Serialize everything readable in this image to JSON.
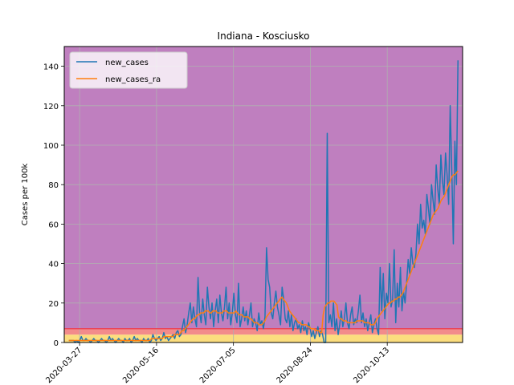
{
  "chart_data": {
    "type": "line",
    "title": "Indiana - Kosciusko",
    "xlabel": "",
    "ylabel": "Cases per 100k",
    "x_start": "2020-03-20",
    "x_end": "2020-11-28",
    "xlim": [
      "2020-03-17",
      "2020-12-01"
    ],
    "ylim": [
      0,
      150
    ],
    "x_ticks": [
      "2020-03-27",
      "2020-05-16",
      "2020-07-05",
      "2020-08-24",
      "2020-10-13"
    ],
    "y_ticks": [
      0,
      20,
      40,
      60,
      80,
      100,
      120,
      140
    ],
    "grid": true,
    "legend_position": "top-left",
    "bands": [
      {
        "from": 0,
        "to": 4,
        "color": "#fbdd7e"
      },
      {
        "from": 4,
        "to": 7,
        "color": "#f28b8b"
      },
      {
        "from": 7,
        "to": 150,
        "color": "#bf7fbf"
      }
    ],
    "threshold_line": {
      "value": 7,
      "color": "#e8445a"
    },
    "series": [
      {
        "name": "new_cases",
        "color": "#1f77b4",
        "values": [
          1,
          1,
          1,
          1,
          0,
          1,
          0,
          1,
          3,
          1,
          1,
          2,
          1,
          1,
          0,
          1,
          2,
          1,
          1,
          0,
          1,
          2,
          1,
          1,
          0,
          1,
          3,
          1,
          2,
          1,
          0,
          1,
          2,
          1,
          1,
          0,
          2,
          1,
          1,
          2,
          0,
          1,
          3,
          1,
          2,
          1,
          1,
          0,
          2,
          1,
          1,
          2,
          0,
          1,
          4,
          2,
          1,
          2,
          3,
          1,
          2,
          5,
          2,
          3,
          1,
          2,
          3,
          4,
          2,
          5,
          6,
          3,
          4,
          8,
          12,
          5,
          9,
          15,
          20,
          10,
          18,
          12,
          8,
          33,
          15,
          10,
          22,
          14,
          9,
          28,
          18,
          12,
          20,
          8,
          16,
          22,
          10,
          24,
          15,
          11,
          18,
          28,
          12,
          20,
          9,
          15,
          25,
          14,
          10,
          30,
          8,
          12,
          18,
          11,
          16,
          9,
          14,
          20,
          8,
          12,
          10,
          6,
          15,
          9,
          11,
          7,
          13,
          48,
          32,
          28,
          15,
          12,
          20,
          26,
          18,
          14,
          9,
          28,
          22,
          12,
          10,
          16,
          8,
          14,
          6,
          10,
          12,
          7,
          9,
          5,
          11,
          6,
          8,
          4,
          10,
          7,
          3,
          6,
          2,
          5,
          8,
          3,
          6,
          4,
          0,
          0,
          106,
          10,
          14,
          8,
          20,
          6,
          12,
          4,
          9,
          16,
          8,
          12,
          20,
          10,
          7,
          14,
          18,
          9,
          12,
          10,
          16,
          24,
          10,
          15,
          8,
          12,
          6,
          10,
          14,
          5,
          9,
          12,
          7,
          4,
          38,
          16,
          35,
          12,
          25,
          20,
          40,
          18,
          22,
          47,
          10,
          30,
          18,
          38,
          16,
          26,
          20,
          30,
          42,
          35,
          48,
          40,
          38,
          45,
          60,
          50,
          70,
          58,
          62,
          55,
          75,
          68,
          60,
          80,
          72,
          65,
          90,
          78,
          70,
          95,
          82,
          75,
          96,
          85,
          70,
          120,
          88,
          50,
          102,
          80,
          143
        ]
      },
      {
        "name": "new_cases_ra",
        "color": "#ff7f0e",
        "values": [
          1,
          1,
          1,
          1,
          1,
          1,
          1,
          1,
          1,
          1,
          1,
          1,
          1,
          1,
          1,
          1,
          1,
          1,
          1,
          1,
          1,
          1,
          1,
          1,
          1,
          1,
          1,
          1,
          1,
          1,
          1,
          1,
          1,
          1,
          1,
          1,
          1,
          1,
          1,
          1,
          1,
          1,
          1,
          1,
          1,
          1,
          1,
          1,
          1,
          1,
          1,
          1,
          1,
          1,
          2,
          2,
          2,
          2,
          2,
          2,
          2,
          2,
          3,
          3,
          3,
          3,
          3,
          3,
          3,
          4,
          4,
          4,
          4,
          5,
          6,
          6,
          7,
          8,
          9,
          10,
          11,
          12,
          12,
          13,
          14,
          14,
          15,
          15,
          15,
          16,
          16,
          16,
          15,
          15,
          16,
          16,
          16,
          15,
          15,
          15,
          15,
          16,
          16,
          16,
          15,
          15,
          15,
          15,
          15,
          16,
          15,
          14,
          14,
          14,
          13,
          13,
          13,
          13,
          12,
          12,
          11,
          10,
          10,
          10,
          9,
          9,
          9,
          10,
          11,
          13,
          14,
          15,
          16,
          17,
          18,
          19,
          20,
          21,
          22,
          23,
          22,
          21,
          20,
          18,
          16,
          15,
          14,
          13,
          12,
          11,
          10,
          10,
          9,
          9,
          9,
          9,
          8,
          8,
          7,
          7,
          7,
          6,
          6,
          6,
          5,
          5,
          14,
          18,
          19,
          20,
          20,
          21,
          21,
          21,
          20,
          19,
          13,
          12,
          12,
          11,
          11,
          11,
          10,
          10,
          10,
          10,
          10,
          10,
          11,
          11,
          11,
          11,
          11,
          10,
          10,
          10,
          10,
          9,
          9,
          9,
          10,
          12,
          13,
          14,
          15,
          16,
          17,
          18,
          19,
          20,
          20,
          21,
          21,
          22,
          22,
          23,
          23,
          24,
          25,
          27,
          29,
          31,
          33,
          35,
          37,
          39,
          41,
          43,
          45,
          47,
          49,
          51,
          53,
          55,
          57,
          59,
          61,
          63,
          65,
          66,
          67,
          68,
          70,
          72,
          73,
          74,
          76,
          78,
          80,
          82,
          84,
          85,
          85,
          86,
          87
        ]
      }
    ]
  }
}
